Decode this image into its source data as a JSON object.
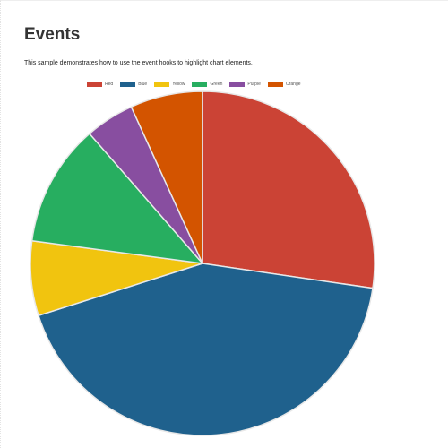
{
  "header": {
    "title": "Events",
    "description": "This sample demonstrates how to use the event hooks to highlight chart elements."
  },
  "chart_data": {
    "type": "pie",
    "title": "",
    "legend_position": "top",
    "categories": [
      "Red",
      "Blue",
      "Yellow",
      "Green",
      "Purple",
      "Orange"
    ],
    "values": [
      27.3,
      42.8,
      7.0,
      11.5,
      4.6,
      6.8
    ],
    "colors": [
      "#cb4335",
      "#1f618d",
      "#f1c40f",
      "#27ae60",
      "#884ea0",
      "#d35400"
    ],
    "border_color": "#e8e8e8"
  }
}
